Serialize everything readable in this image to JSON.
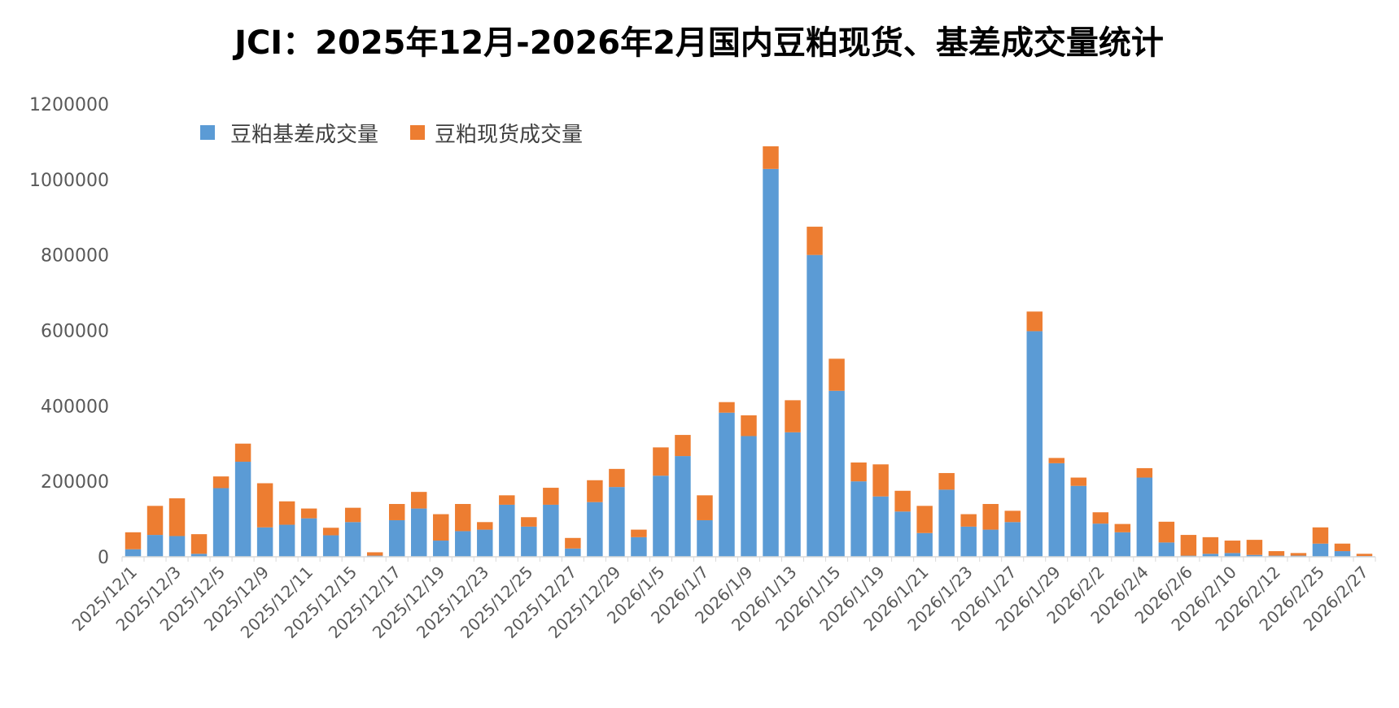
{
  "chart_data": {
    "type": "bar",
    "stacked": true,
    "title": "JCI：2025年12月-2026年2月国内豆粕现货、基差成交量统计",
    "xlabel": "",
    "ylabel": "",
    "ylim": [
      0,
      1200000
    ],
    "yticks": [
      0,
      200000,
      400000,
      600000,
      800000,
      1000000,
      1200000
    ],
    "legend_position": "top-left",
    "grid": false,
    "categories": [
      "2025/12/1",
      "",
      "2025/12/3",
      "",
      "2025/12/5",
      "",
      "2025/12/9",
      "",
      "2025/12/11",
      "",
      "2025/12/15",
      "",
      "2025/12/17",
      "",
      "2025/12/19",
      "",
      "2025/12/23",
      "",
      "2025/12/25",
      "",
      "2025/12/27",
      "",
      "2025/12/29",
      "",
      "2026/1/5",
      "",
      "2026/1/7",
      "",
      "2026/1/9",
      "",
      "2026/1/13",
      "",
      "2026/1/15",
      "",
      "2026/1/19",
      "",
      "2026/1/21",
      "",
      "2026/1/23",
      "",
      "2026/1/27",
      "",
      "2026/1/29",
      "",
      "2026/2/2",
      "",
      "2026/2/4",
      "",
      "2026/2/6",
      "",
      "2026/2/10",
      "",
      "2026/2/12",
      "",
      "2026/2/25",
      "",
      "2026/2/27"
    ],
    "series": [
      {
        "name": "豆粕基差成交量",
        "color": "#5B9BD5",
        "values": [
          20000,
          58000,
          55000,
          8000,
          182000,
          252000,
          78000,
          85000,
          102000,
          57000,
          92000,
          3000,
          97000,
          128000,
          43000,
          68000,
          72000,
          138000,
          80000,
          138000,
          22000,
          145000,
          185000,
          52000,
          215000,
          267000,
          97000,
          382000,
          320000,
          1028000,
          330000,
          800000,
          440000,
          200000,
          160000,
          120000,
          63000,
          178000,
          80000,
          72000,
          92000,
          598000,
          248000,
          188000,
          88000,
          65000,
          210000,
          38000,
          3000,
          8000,
          10000,
          5000,
          3000,
          3000,
          35000,
          15000,
          2000
        ]
      },
      {
        "name": "豆粕现货成交量",
        "color": "#ED7D31",
        "values": [
          45000,
          77000,
          100000,
          52000,
          31000,
          48000,
          117000,
          62000,
          26000,
          20000,
          38000,
          9000,
          43000,
          44000,
          70000,
          72000,
          20000,
          25000,
          25000,
          45000,
          28000,
          58000,
          48000,
          20000,
          75000,
          56000,
          66000,
          28000,
          55000,
          60000,
          85000,
          75000,
          85000,
          50000,
          85000,
          55000,
          72000,
          44000,
          33000,
          68000,
          30000,
          52000,
          14000,
          22000,
          30000,
          22000,
          25000,
          55000,
          55000,
          44000,
          33000,
          40000,
          12000,
          7000,
          43000,
          20000,
          6000
        ]
      }
    ]
  }
}
